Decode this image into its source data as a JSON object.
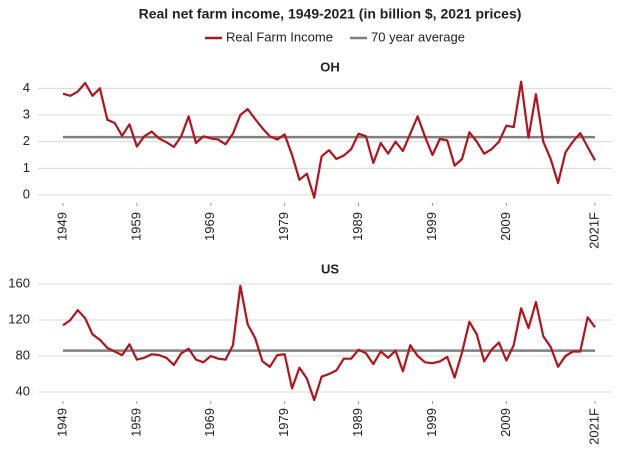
{
  "title": "Real net farm income, 1949-2021 (in billion $, 2021 prices)",
  "chart_data": [
    {
      "type": "line",
      "title": "OH",
      "x": [
        1949,
        1950,
        1951,
        1952,
        1953,
        1954,
        1955,
        1956,
        1957,
        1958,
        1959,
        1960,
        1961,
        1962,
        1963,
        1964,
        1965,
        1966,
        1967,
        1968,
        1969,
        1970,
        1971,
        1972,
        1973,
        1974,
        1975,
        1976,
        1977,
        1978,
        1979,
        1980,
        1981,
        1982,
        1983,
        1984,
        1985,
        1986,
        1987,
        1988,
        1989,
        1990,
        1991,
        1992,
        1993,
        1994,
        1995,
        1996,
        1997,
        1998,
        1999,
        2000,
        2001,
        2002,
        2003,
        2004,
        2005,
        2006,
        2007,
        2008,
        2009,
        2010,
        2011,
        2012,
        2013,
        2014,
        2015,
        2016,
        2017,
        2018,
        2019,
        2020,
        2021
      ],
      "series": [
        {
          "name": "Real Farm Income",
          "color": "#b5121b",
          "values": [
            3.8,
            3.72,
            3.88,
            4.2,
            3.72,
            4.0,
            2.82,
            2.7,
            2.22,
            2.65,
            1.82,
            2.2,
            2.38,
            2.12,
            1.98,
            1.8,
            2.2,
            2.95,
            1.95,
            2.2,
            2.12,
            2.08,
            1.9,
            2.3,
            3.0,
            3.22,
            2.85,
            2.5,
            2.2,
            2.08,
            2.27,
            1.5,
            0.57,
            0.8,
            -0.1,
            1.45,
            1.68,
            1.35,
            1.48,
            1.72,
            2.3,
            2.2,
            1.2,
            1.95,
            1.55,
            2.0,
            1.65,
            2.3,
            2.95,
            2.18,
            1.5,
            2.1,
            2.05,
            1.1,
            1.35,
            2.35,
            2.0,
            1.55,
            1.72,
            2.0,
            2.6,
            2.55,
            4.25,
            2.15,
            3.78,
            2.0,
            1.35,
            0.45,
            1.6,
            2.0,
            2.32,
            1.8,
            1.3
          ]
        },
        {
          "name": "70 year average",
          "color": "#7f7f7f",
          "value": 2.17
        }
      ],
      "xlim": [
        1947,
        2023
      ],
      "xticks": [
        1949,
        1959,
        1969,
        1979,
        1989,
        1999,
        2009,
        {
          "value": 2021,
          "label": "2021F"
        }
      ],
      "ylim": [
        -0.3,
        4.5
      ],
      "yticks": [
        0,
        1,
        2,
        3,
        4
      ],
      "grid": true
    },
    {
      "type": "line",
      "title": "US",
      "x": [
        1949,
        1950,
        1951,
        1952,
        1953,
        1954,
        1955,
        1956,
        1957,
        1958,
        1959,
        1960,
        1961,
        1962,
        1963,
        1964,
        1965,
        1966,
        1967,
        1968,
        1969,
        1970,
        1971,
        1972,
        1973,
        1974,
        1975,
        1976,
        1977,
        1978,
        1979,
        1980,
        1981,
        1982,
        1983,
        1984,
        1985,
        1986,
        1987,
        1988,
        1989,
        1990,
        1991,
        1992,
        1993,
        1994,
        1995,
        1996,
        1997,
        1998,
        1999,
        2000,
        2001,
        2002,
        2003,
        2004,
        2005,
        2006,
        2007,
        2008,
        2009,
        2010,
        2011,
        2012,
        2013,
        2014,
        2015,
        2016,
        2017,
        2018,
        2019,
        2020,
        2021
      ],
      "series": [
        {
          "name": "Real Farm Income",
          "color": "#b5121b",
          "values": [
            114,
            120,
            131,
            122,
            104,
            98,
            89,
            85,
            81,
            93,
            76,
            78,
            82,
            81,
            78,
            70,
            83,
            88,
            76,
            73,
            80,
            77,
            76,
            92,
            158,
            115,
            100,
            74,
            68,
            81,
            82,
            44,
            67,
            55,
            31,
            57,
            60,
            64,
            77,
            77,
            87,
            83,
            71,
            85,
            78,
            86,
            63,
            92,
            80,
            73,
            72,
            74,
            79,
            56,
            84,
            118,
            104,
            74,
            87,
            95,
            75,
            92,
            133,
            111,
            140,
            102,
            90,
            68,
            80,
            85,
            85,
            123,
            112
          ]
        },
        {
          "name": "70 year average",
          "color": "#7f7f7f",
          "value": 86
        }
      ],
      "xlim": [
        1947,
        2023
      ],
      "xticks": [
        1949,
        1959,
        1969,
        1979,
        1989,
        1999,
        2009,
        {
          "value": 2021,
          "label": "2021F"
        }
      ],
      "ylim": [
        30,
        170
      ],
      "yticks": [
        40,
        80,
        120,
        160
      ],
      "grid": true
    }
  ]
}
